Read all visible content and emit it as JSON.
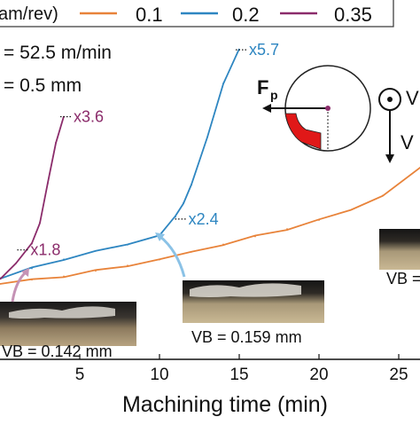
{
  "chart_data": {
    "type": "line",
    "xlabel": "Machining time (min)",
    "x_ticks": [
      5,
      10,
      15,
      20,
      25
    ],
    "xlim": [
      0,
      26.5
    ],
    "legend": {
      "title": "am/rev)",
      "placement": "top",
      "entries": [
        {
          "label": "0.1",
          "color": "#e8833a"
        },
        {
          "label": "0.2",
          "color": "#2e86c1"
        },
        {
          "label": "0.35",
          "color": "#8b2c6b"
        }
      ]
    },
    "params": [
      "= 52.5 m/min",
      "= 0.5 mm"
    ],
    "series": [
      {
        "name": "0.1",
        "color": "#e8833a",
        "x": [
          0,
          2,
          4,
          6,
          8,
          10,
          12,
          14,
          16,
          18,
          20,
          22,
          24,
          26.5
        ],
        "y": [
          0.0,
          0.08,
          0.15,
          0.25,
          0.36,
          0.47,
          0.62,
          0.77,
          0.92,
          1.07,
          1.24,
          1.44,
          1.72,
          2.28
        ]
      },
      {
        "name": "0.2",
        "color": "#2e86c1",
        "x": [
          0,
          2,
          4,
          6,
          8,
          10,
          11,
          11.5,
          12,
          13,
          14,
          15
        ],
        "y": [
          0.12,
          0.3,
          0.48,
          0.64,
          0.76,
          0.96,
          1.3,
          1.58,
          1.92,
          2.85,
          3.9,
          4.55
        ]
      },
      {
        "name": "0.35",
        "color": "#8b2c6b",
        "x": [
          0,
          1,
          2,
          2.5,
          3,
          3.5,
          4
        ],
        "y": [
          0.1,
          0.4,
          0.78,
          1.2,
          1.95,
          2.75,
          3.25
        ]
      }
    ],
    "annotations": [
      {
        "text": "x5.7",
        "color": "#2e86c1",
        "x": 15,
        "y": 4.55
      },
      {
        "text": "x3.6",
        "color": "#8b2c6b",
        "x": 4,
        "y": 3.25
      },
      {
        "text": "x2.4",
        "color": "#2e86c1",
        "x": 11.2,
        "y": 1.26
      },
      {
        "text": "x1.8",
        "color": "#8b2c6b",
        "x": 1.3,
        "y": 0.66
      }
    ],
    "wear_labels": [
      "VB = 0.142 mm",
      "VB = 0.159 mm",
      "VB ="
    ],
    "diagram": {
      "force_label": "F",
      "force_sub": "p",
      "v_label": "V"
    }
  }
}
